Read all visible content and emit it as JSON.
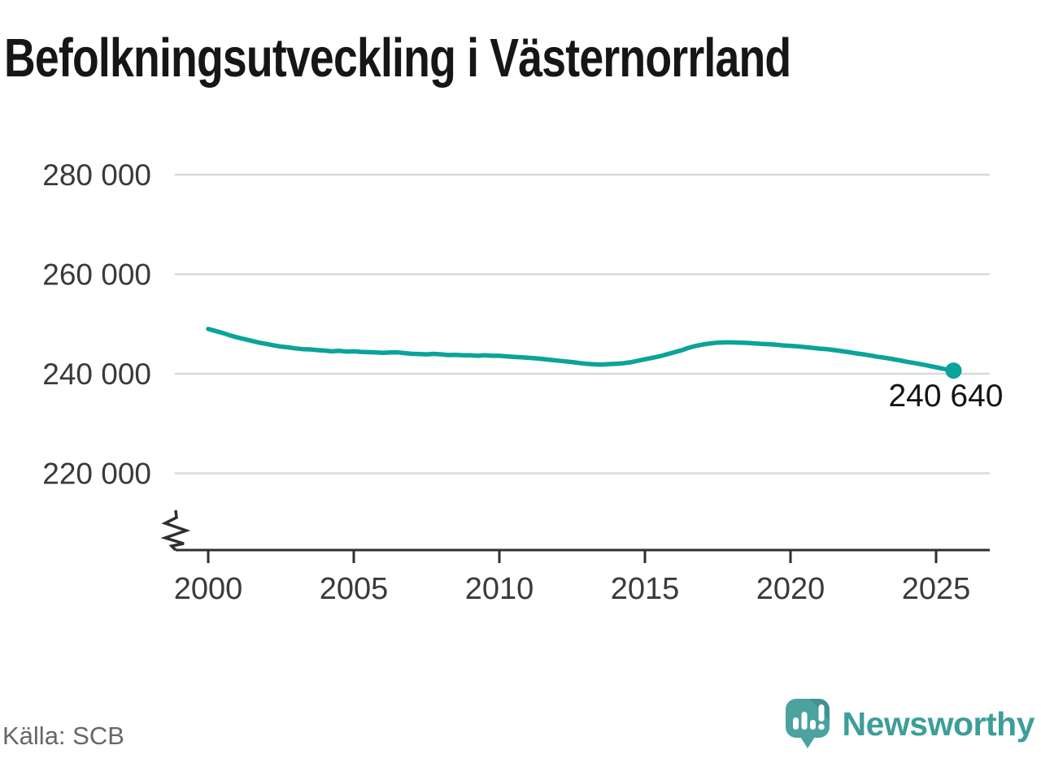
{
  "header": {
    "title": "Befolkningsutveckling i Västernorrland"
  },
  "footer": {
    "source": "Källa: SCB",
    "brand": "Newsworthy"
  },
  "colors": {
    "line": "#0ba39a",
    "grid": "#d9d9d9",
    "axis": "#2f2f2f",
    "logo_bubble": "#4ba3a0",
    "brand_text": "#3d9e98"
  },
  "chart_data": {
    "type": "line",
    "title": "Befolkningsutveckling i Västernorrland",
    "xlabel": "",
    "ylabel": "",
    "grid": "horizontal",
    "axis_break": true,
    "x_ticks": [
      2000,
      2005,
      2010,
      2015,
      2020,
      2025
    ],
    "x_tick_labels": [
      "2000",
      "2005",
      "2010",
      "2015",
      "2020",
      "2025"
    ],
    "y_tick_values": [
      280000,
      260000,
      240000,
      220000
    ],
    "y_tick_labels": [
      "280 000",
      "260 000",
      "240 000",
      "220 000"
    ],
    "x_range": [
      2000,
      2026.8
    ],
    "y_range_visible": [
      218000,
      287000
    ],
    "end_point": {
      "x": 2025.6,
      "value": 240640,
      "label": "240 640"
    },
    "series": [
      {
        "points": [
          [
            2000.0,
            249000
          ],
          [
            2000.25,
            248600
          ],
          [
            2000.5,
            248200
          ],
          [
            2000.75,
            247700
          ],
          [
            2001.0,
            247300
          ],
          [
            2001.25,
            246950
          ],
          [
            2001.5,
            246600
          ],
          [
            2001.75,
            246250
          ],
          [
            2002.0,
            246000
          ],
          [
            2002.25,
            245700
          ],
          [
            2002.5,
            245450
          ],
          [
            2002.75,
            245300
          ],
          [
            2003.0,
            245100
          ],
          [
            2003.25,
            244950
          ],
          [
            2003.5,
            244900
          ],
          [
            2003.75,
            244750
          ],
          [
            2004.0,
            244650
          ],
          [
            2004.25,
            244500
          ],
          [
            2004.5,
            244600
          ],
          [
            2004.75,
            244450
          ],
          [
            2005.0,
            244500
          ],
          [
            2005.25,
            244400
          ],
          [
            2005.5,
            244350
          ],
          [
            2005.75,
            244300
          ],
          [
            2006.0,
            244200
          ],
          [
            2006.25,
            244300
          ],
          [
            2006.5,
            244300
          ],
          [
            2006.75,
            244150
          ],
          [
            2007.0,
            244000
          ],
          [
            2007.25,
            243950
          ],
          [
            2007.5,
            243900
          ],
          [
            2007.75,
            244000
          ],
          [
            2008.0,
            243900
          ],
          [
            2008.25,
            243750
          ],
          [
            2008.5,
            243800
          ],
          [
            2008.75,
            243700
          ],
          [
            2009.0,
            243700
          ],
          [
            2009.25,
            243600
          ],
          [
            2009.5,
            243700
          ],
          [
            2009.75,
            243600
          ],
          [
            2010.0,
            243600
          ],
          [
            2010.25,
            243500
          ],
          [
            2010.5,
            243400
          ],
          [
            2010.75,
            243300
          ],
          [
            2011.0,
            243200
          ],
          [
            2011.25,
            243100
          ],
          [
            2011.5,
            242950
          ],
          [
            2011.75,
            242800
          ],
          [
            2012.0,
            242650
          ],
          [
            2012.25,
            242500
          ],
          [
            2012.5,
            242350
          ],
          [
            2012.75,
            242150
          ],
          [
            2013.0,
            242000
          ],
          [
            2013.25,
            241900
          ],
          [
            2013.5,
            241850
          ],
          [
            2013.75,
            241950
          ],
          [
            2014.0,
            242000
          ],
          [
            2014.25,
            242100
          ],
          [
            2014.5,
            242300
          ],
          [
            2014.75,
            242600
          ],
          [
            2015.0,
            242900
          ],
          [
            2015.25,
            243200
          ],
          [
            2015.5,
            243500
          ],
          [
            2015.75,
            243900
          ],
          [
            2016.0,
            244300
          ],
          [
            2016.25,
            244700
          ],
          [
            2016.5,
            245200
          ],
          [
            2016.75,
            245600
          ],
          [
            2017.0,
            245900
          ],
          [
            2017.25,
            246100
          ],
          [
            2017.5,
            246250
          ],
          [
            2017.75,
            246300
          ],
          [
            2018.0,
            246300
          ],
          [
            2018.25,
            246250
          ],
          [
            2018.5,
            246200
          ],
          [
            2018.75,
            246100
          ],
          [
            2019.0,
            246000
          ],
          [
            2019.25,
            245950
          ],
          [
            2019.5,
            245850
          ],
          [
            2019.75,
            245700
          ],
          [
            2020.0,
            245600
          ],
          [
            2020.25,
            245500
          ],
          [
            2020.5,
            245350
          ],
          [
            2020.75,
            245200
          ],
          [
            2021.0,
            245050
          ],
          [
            2021.25,
            244950
          ],
          [
            2021.5,
            244750
          ],
          [
            2021.75,
            244550
          ],
          [
            2022.0,
            244350
          ],
          [
            2022.25,
            244100
          ],
          [
            2022.5,
            243900
          ],
          [
            2022.75,
            243650
          ],
          [
            2023.0,
            243400
          ],
          [
            2023.25,
            243200
          ],
          [
            2023.5,
            242950
          ],
          [
            2023.75,
            242700
          ],
          [
            2024.0,
            242400
          ],
          [
            2024.25,
            242150
          ],
          [
            2024.5,
            241900
          ],
          [
            2024.75,
            241600
          ],
          [
            2025.0,
            241300
          ],
          [
            2025.25,
            241000
          ],
          [
            2025.6,
            240640
          ]
        ]
      }
    ]
  }
}
